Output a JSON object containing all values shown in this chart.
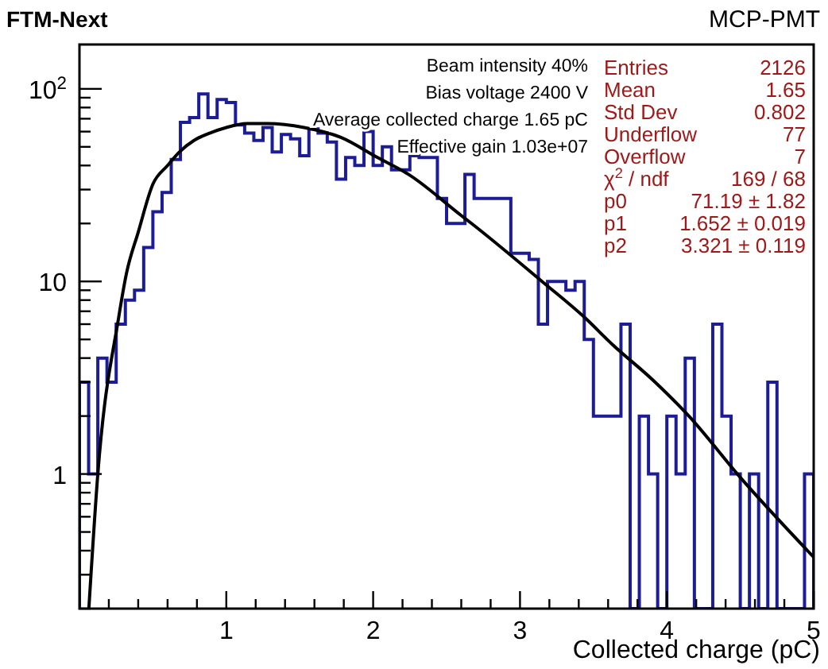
{
  "chart_data": {
    "type": "histogram",
    "title": "FTM-Next",
    "subtitle": "MCP-PMT",
    "xlabel": "Collected charge (pC)",
    "log": true,
    "grid": false,
    "xlim": [
      0,
      5
    ],
    "ylim": [
      0.2,
      170
    ],
    "xticks": [
      {
        "value": 0.2,
        "label": null
      },
      {
        "value": 0.4,
        "label": null
      },
      {
        "value": 0.6,
        "label": null
      },
      {
        "value": 0.8,
        "label": null
      },
      1,
      {
        "value": 1.2,
        "label": null
      },
      {
        "value": 1.4,
        "label": null
      },
      {
        "value": 1.6,
        "label": null
      },
      {
        "value": 1.8,
        "label": null
      },
      2,
      {
        "value": 2.2,
        "label": null
      },
      {
        "value": 2.4,
        "label": null
      },
      {
        "value": 2.6,
        "label": null
      },
      {
        "value": 2.8,
        "label": null
      },
      3,
      {
        "value": 3.2,
        "label": null
      },
      {
        "value": 3.4,
        "label": null
      },
      {
        "value": 3.6,
        "label": null
      },
      {
        "value": 3.8,
        "label": null
      },
      4,
      {
        "value": 4.2,
        "label": null
      },
      {
        "value": 4.4,
        "label": null
      },
      {
        "value": 4.6,
        "label": null
      },
      {
        "value": 4.8,
        "label": null
      },
      5
    ],
    "yticks": [
      {
        "value": 0.2,
        "label": null
      },
      {
        "value": 0.3,
        "label": null
      },
      {
        "value": 0.4,
        "label": null
      },
      {
        "value": 0.5,
        "label": null
      },
      {
        "value": 0.6,
        "label": null
      },
      {
        "value": 0.7,
        "label": null
      },
      {
        "value": 0.8,
        "label": null
      },
      {
        "value": 0.9,
        "label": null
      },
      1,
      {
        "value": 2,
        "label": null
      },
      {
        "value": 3,
        "label": null
      },
      {
        "value": 4,
        "label": null
      },
      {
        "value": 5,
        "label": null
      },
      {
        "value": 6,
        "label": null
      },
      {
        "value": 7,
        "label": null
      },
      {
        "value": 8,
        "label": null
      },
      {
        "value": 9,
        "label": null
      },
      10,
      {
        "value": 20,
        "label": null
      },
      {
        "value": 30,
        "label": null
      },
      {
        "value": 40,
        "label": null
      },
      {
        "value": 50,
        "label": null
      },
      {
        "value": 60,
        "label": null
      },
      {
        "value": 70,
        "label": null
      },
      {
        "value": 80,
        "label": null
      },
      {
        "value": 90,
        "label": null
      },
      {
        "value": 100,
        "label": "10$^{2}$"
      }
    ],
    "bins": [
      0,
      0.0625,
      0.125,
      0.1875,
      0.25,
      0.3125,
      0.375,
      0.4375,
      0.5,
      0.5625,
      0.625,
      0.6875,
      0.75,
      0.8125,
      0.875,
      0.9375,
      1,
      1.0625,
      1.125,
      1.1875,
      1.25,
      1.3125,
      1.375,
      1.4375,
      1.5,
      1.5625,
      1.625,
      1.6875,
      1.75,
      1.8125,
      1.875,
      1.9375,
      2,
      2.0625,
      2.125,
      2.1875,
      2.25,
      2.3125,
      2.375,
      2.4375,
      2.5,
      2.5625,
      2.625,
      2.6875,
      2.75,
      2.8125,
      2.875,
      2.9375,
      3,
      3.0625,
      3.125,
      3.1875,
      3.25,
      3.3125,
      3.375,
      3.4375,
      3.5,
      3.5625,
      3.625,
      3.6875,
      3.75,
      3.8125,
      3.875,
      3.9375,
      4,
      4.0625,
      4.125,
      4.1875,
      4.25,
      4.3125,
      4.375,
      4.4375,
      4.5,
      4.5625,
      4.625,
      4.6875,
      4.75,
      4.8125,
      4.875,
      4.9375,
      5
    ],
    "series": [
      {
        "color": "#1c1c96",
        "values": [
          3,
          1,
          4,
          3,
          6,
          8,
          9,
          15,
          23,
          29,
          43,
          67,
          71,
          94,
          71,
          88,
          85,
          65,
          59,
          54,
          63,
          47,
          58,
          55,
          45,
          62,
          59,
          53,
          34,
          44,
          40,
          60,
          40,
          50,
          38,
          38,
          45,
          44,
          44,
          27,
          20,
          20,
          36,
          27,
          27,
          27,
          27,
          14,
          14,
          13,
          6,
          10,
          10,
          9,
          10,
          5,
          2,
          2,
          2,
          6,
          null,
          2,
          1,
          null,
          2,
          1,
          4,
          null,
          null,
          6,
          2,
          1,
          null,
          1,
          null,
          3,
          null,
          null,
          null,
          1
        ]
      },
      {
        "type": "line",
        "color": "#000000",
        "x": [
          0.064,
          0.125,
          0.267,
          0.32,
          0.4,
          0.5,
          0.6,
          0.68,
          0.78,
          0.89,
          1,
          1.14,
          1.28,
          1.53,
          1.78,
          2.03,
          2.24,
          2.6,
          2.67,
          3.15,
          3.44,
          3.63,
          3.9,
          4.15,
          4.5,
          5
        ],
        "values": [
          0.2,
          1,
          6.5,
          11,
          18,
          32,
          40,
          47,
          54,
          59,
          63,
          66,
          66,
          63,
          56,
          44,
          36,
          22,
          20,
          10,
          6.5,
          4.7,
          3.1,
          2,
          0.96,
          0.37
        ]
      }
    ],
    "annotations": [
      "Beam intensity 40%",
      "Bias voltage 2400 V",
      "Average collected charge 1.65 pC",
      "Effective gain 1.03e+07",
      "Entries\t2126",
      "Mean\t1.65",
      "Std Dev\t0.802",
      "Underflow\t77",
      "Overflow\t7",
      "χ$^{2}$ / ndf\t169 / 68",
      "p0\t71.19 ± 1.82",
      "p1\t1.652 ± 0.019",
      "p2\t3.321 ± 0.119"
    ]
  }
}
